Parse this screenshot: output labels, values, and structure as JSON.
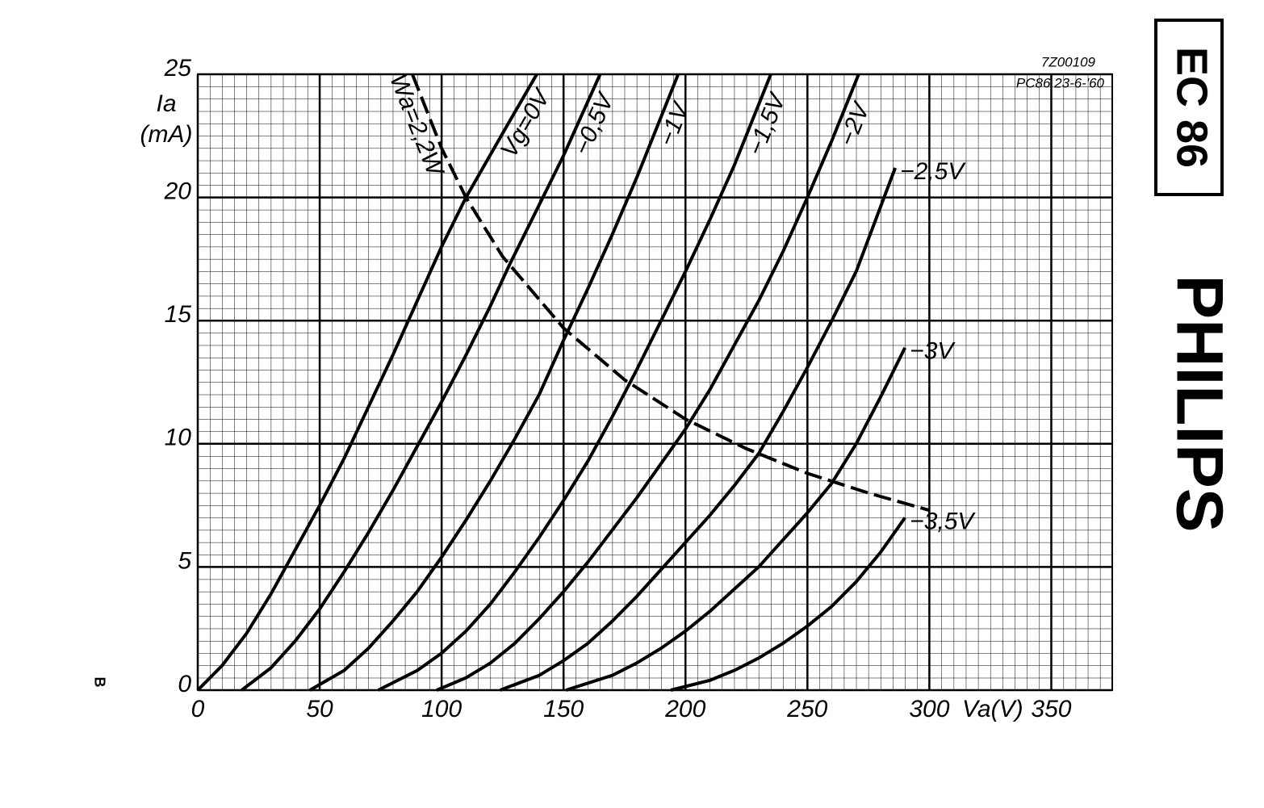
{
  "chart_data": {
    "type": "line",
    "y_label": "Ia",
    "y_unit": "(mA)",
    "x_label": "Va(V)",
    "drawing_number": "7Z00109",
    "drawing_date": "PC86 23-6-'60",
    "tube": "EC 86",
    "brand": "PHILIPS",
    "corner_mark": "B",
    "xlim": [
      0,
      375
    ],
    "ylim": [
      0,
      25
    ],
    "xticks": [
      0,
      50,
      100,
      150,
      200,
      250,
      300,
      350
    ],
    "yticks": [
      0,
      5,
      10,
      15,
      20,
      25
    ],
    "grid": true,
    "color": "#000000",
    "series": [
      {
        "name": "Vg=0V",
        "x": [
          0,
          10,
          20,
          30,
          40,
          50,
          60,
          70,
          80,
          90,
          100,
          110,
          125,
          139
        ],
        "values": [
          0,
          1,
          2.3,
          3.9,
          5.7,
          7.5,
          9.4,
          11.5,
          13.6,
          15.8,
          18,
          20,
          22.6,
          25
        ]
      },
      {
        "name": "−0,5V",
        "x": [
          18,
          30,
          40,
          50,
          60,
          70,
          80,
          90,
          100,
          110,
          120,
          128,
          140,
          150,
          165
        ],
        "values": [
          0,
          0.9,
          2,
          3.3,
          4.8,
          6.4,
          8.1,
          9.9,
          11.7,
          13.6,
          15.6,
          17.3,
          19.7,
          21.7,
          25
        ]
      },
      {
        "name": "−1V",
        "x": [
          46,
          60,
          70,
          80,
          90,
          100,
          110,
          120,
          130,
          140,
          150,
          160,
          170,
          180,
          197
        ],
        "values": [
          0,
          0.8,
          1.7,
          2.8,
          4,
          5.4,
          6.9,
          8.5,
          10.2,
          12,
          14.2,
          16.3,
          18.5,
          20.8,
          25
        ]
      },
      {
        "name": "−1,5V",
        "x": [
          74,
          90,
          100,
          110,
          120,
          130,
          140,
          150,
          160,
          170,
          180,
          190,
          200,
          210,
          220,
          235
        ],
        "values": [
          0,
          0.8,
          1.5,
          2.4,
          3.5,
          4.8,
          6.2,
          7.7,
          9.3,
          11.1,
          13,
          15,
          17,
          19.1,
          21.3,
          25
        ]
      },
      {
        "name": "−2V",
        "x": [
          98,
          110,
          120,
          130,
          140,
          150,
          160,
          170,
          180,
          190,
          200,
          210,
          220,
          230,
          240,
          250,
          260,
          271
        ],
        "values": [
          0,
          0.5,
          1.1,
          1.9,
          2.9,
          4,
          5.2,
          6.5,
          7.8,
          9.2,
          10.6,
          12.2,
          14,
          15.8,
          17.8,
          20,
          22.3,
          25
        ]
      },
      {
        "name": "−2,5V",
        "x": [
          124,
          140,
          150,
          160,
          170,
          180,
          190,
          200,
          210,
          220,
          230,
          240,
          250,
          260,
          270,
          286
        ],
        "values": [
          0,
          0.6,
          1.2,
          1.9,
          2.8,
          3.8,
          4.9,
          6,
          7.1,
          8.3,
          9.6,
          11.3,
          13.1,
          15,
          17,
          21.2
        ]
      },
      {
        "name": "−3V",
        "x": [
          151,
          170,
          180,
          190,
          200,
          210,
          220,
          230,
          240,
          250,
          260,
          270,
          280,
          290
        ],
        "values": [
          0,
          0.6,
          1.1,
          1.7,
          2.4,
          3.2,
          4.1,
          5,
          6.1,
          7.2,
          8.4,
          10,
          11.9,
          13.9
        ]
      },
      {
        "name": "−3,5V",
        "x": [
          194,
          210,
          220,
          230,
          240,
          250,
          260,
          270,
          280,
          290
        ],
        "values": [
          0,
          0.4,
          0.8,
          1.3,
          1.9,
          2.6,
          3.4,
          4.4,
          5.6,
          7
        ]
      },
      {
        "name": "Wa=2,2W",
        "dashed": true,
        "x": [
          88,
          100,
          110,
          125,
          150,
          175,
          200,
          225,
          250,
          275,
          300
        ],
        "values": [
          25,
          22,
          20,
          17.6,
          14.7,
          12.6,
          11,
          9.8,
          8.8,
          8,
          7.3
        ]
      }
    ]
  }
}
